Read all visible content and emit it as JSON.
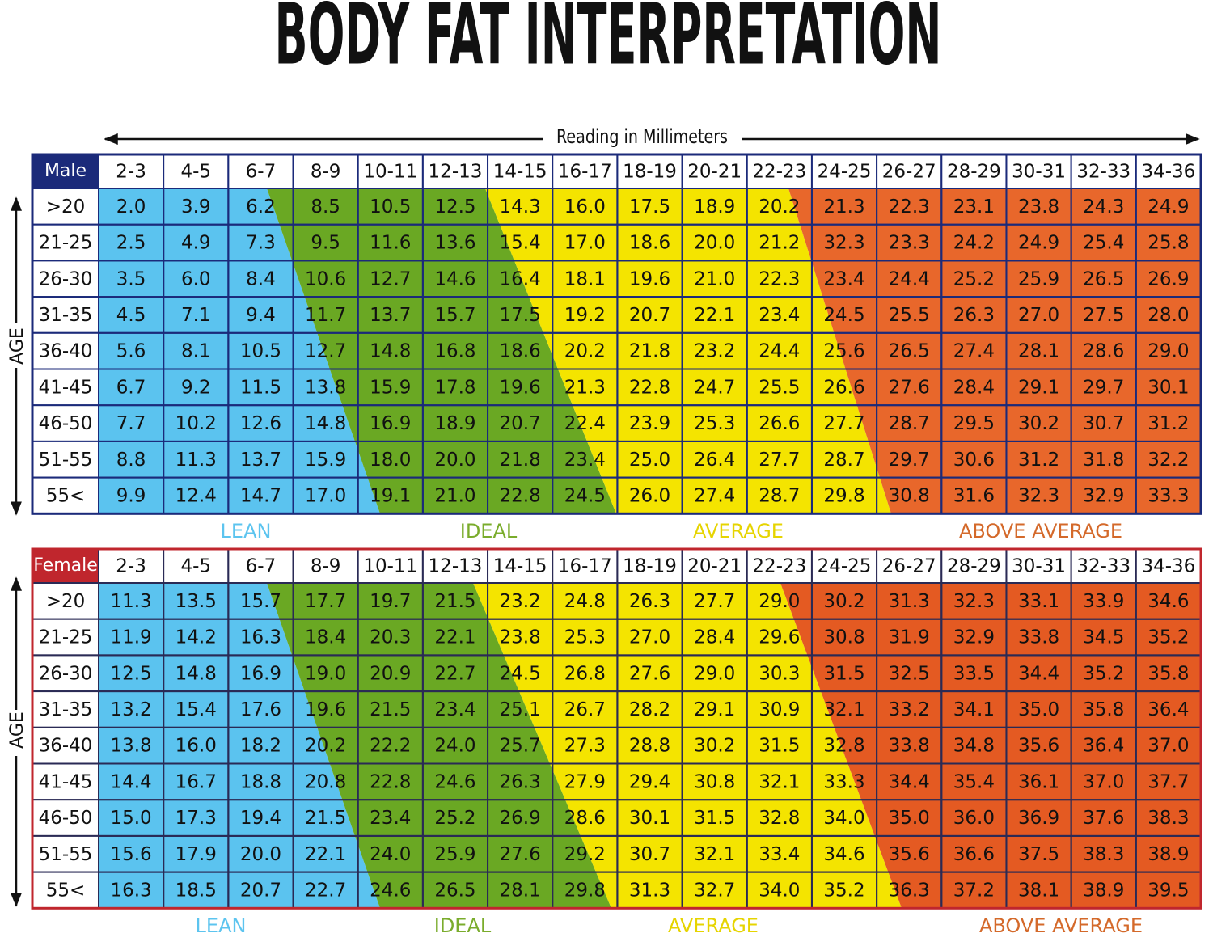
{
  "title": "BODY FAT INTERPRETATION",
  "reading_label": "Reading in Millimeters",
  "tables": [
    {
      "label": "Male",
      "age_label": "AGE",
      "columns": [
        "2-3",
        "4-5",
        "6-7",
        "8-9",
        "10-11",
        "12-13",
        "14-15",
        "16-17",
        "18-19",
        "20-21",
        "22-23",
        "24-25",
        "26-27",
        "28-29",
        "30-31",
        "32-33",
        "34-36"
      ],
      "rows": [
        {
          "age": ">20",
          "values": [
            "2.0",
            "3.9",
            "6.2",
            "8.5",
            "10.5",
            "12.5",
            "14.3",
            "16.0",
            "17.5",
            "18.9",
            "20.2",
            "21.3",
            "22.3",
            "23.1",
            "23.8",
            "24.3",
            "24.9"
          ]
        },
        {
          "age": "21-25",
          "values": [
            "2.5",
            "4.9",
            "7.3",
            "9.5",
            "11.6",
            "13.6",
            "15.4",
            "17.0",
            "18.6",
            "20.0",
            "21.2",
            "32.3",
            "23.3",
            "24.2",
            "24.9",
            "25.4",
            "25.8"
          ]
        },
        {
          "age": "26-30",
          "values": [
            "3.5",
            "6.0",
            "8.4",
            "10.6",
            "12.7",
            "14.6",
            "16.4",
            "18.1",
            "19.6",
            "21.0",
            "22.3",
            "23.4",
            "24.4",
            "25.2",
            "25.9",
            "26.5",
            "26.9"
          ]
        },
        {
          "age": "31-35",
          "values": [
            "4.5",
            "7.1",
            "9.4",
            "11.7",
            "13.7",
            "15.7",
            "17.5",
            "19.2",
            "20.7",
            "22.1",
            "23.4",
            "24.5",
            "25.5",
            "26.3",
            "27.0",
            "27.5",
            "28.0"
          ]
        },
        {
          "age": "36-40",
          "values": [
            "5.6",
            "8.1",
            "10.5",
            "12.7",
            "14.8",
            "16.8",
            "18.6",
            "20.2",
            "21.8",
            "23.2",
            "24.4",
            "25.6",
            "26.5",
            "27.4",
            "28.1",
            "28.6",
            "29.0"
          ]
        },
        {
          "age": "41-45",
          "values": [
            "6.7",
            "9.2",
            "11.5",
            "13.8",
            "15.9",
            "17.8",
            "19.6",
            "21.3",
            "22.8",
            "24.7",
            "25.5",
            "26.6",
            "27.6",
            "28.4",
            "29.1",
            "29.7",
            "30.1"
          ]
        },
        {
          "age": "46-50",
          "values": [
            "7.7",
            "10.2",
            "12.6",
            "14.8",
            "16.9",
            "18.9",
            "20.7",
            "22.4",
            "23.9",
            "25.3",
            "26.6",
            "27.7",
            "28.7",
            "29.5",
            "30.2",
            "30.7",
            "31.2"
          ]
        },
        {
          "age": "51-55",
          "values": [
            "8.8",
            "11.3",
            "13.7",
            "15.9",
            "18.0",
            "20.0",
            "21.8",
            "23.4",
            "25.0",
            "26.4",
            "27.7",
            "28.7",
            "29.7",
            "30.6",
            "31.2",
            "31.8",
            "32.2"
          ]
        },
        {
          "age": "55<",
          "values": [
            "9.9",
            "12.4",
            "14.7",
            "17.0",
            "19.1",
            "21.0",
            "22.8",
            "24.5",
            "26.0",
            "27.4",
            "28.7",
            "29.8",
            "30.8",
            "31.6",
            "32.3",
            "32.9",
            "33.3"
          ]
        }
      ],
      "zones": [
        "LEAN",
        "IDEAL",
        "AVERAGE",
        "ABOVE AVERAGE"
      ]
    },
    {
      "label": "Female",
      "age_label": "AGE",
      "columns": [
        "2-3",
        "4-5",
        "6-7",
        "8-9",
        "10-11",
        "12-13",
        "14-15",
        "16-17",
        "18-19",
        "20-21",
        "22-23",
        "24-25",
        "26-27",
        "28-29",
        "30-31",
        "32-33",
        "34-36"
      ],
      "rows": [
        {
          "age": ">20",
          "values": [
            "11.3",
            "13.5",
            "15.7",
            "17.7",
            "19.7",
            "21.5",
            "23.2",
            "24.8",
            "26.3",
            "27.7",
            "29.0",
            "30.2",
            "31.3",
            "32.3",
            "33.1",
            "33.9",
            "34.6"
          ]
        },
        {
          "age": "21-25",
          "values": [
            "11.9",
            "14.2",
            "16.3",
            "18.4",
            "20.3",
            "22.1",
            "23.8",
            "25.3",
            "27.0",
            "28.4",
            "29.6",
            "30.8",
            "31.9",
            "32.9",
            "33.8",
            "34.5",
            "35.2"
          ]
        },
        {
          "age": "26-30",
          "values": [
            "12.5",
            "14.8",
            "16.9",
            "19.0",
            "20.9",
            "22.7",
            "24.5",
            "26.8",
            "27.6",
            "29.0",
            "30.3",
            "31.5",
            "32.5",
            "33.5",
            "34.4",
            "35.2",
            "35.8"
          ]
        },
        {
          "age": "31-35",
          "values": [
            "13.2",
            "15.4",
            "17.6",
            "19.6",
            "21.5",
            "23.4",
            "25.1",
            "26.7",
            "28.2",
            "29.1",
            "30.9",
            "32.1",
            "33.2",
            "34.1",
            "35.0",
            "35.8",
            "36.4"
          ]
        },
        {
          "age": "36-40",
          "values": [
            "13.8",
            "16.0",
            "18.2",
            "20.2",
            "22.2",
            "24.0",
            "25.7",
            "27.3",
            "28.8",
            "30.2",
            "31.5",
            "32.8",
            "33.8",
            "34.8",
            "35.6",
            "36.4",
            "37.0"
          ]
        },
        {
          "age": "41-45",
          "values": [
            "14.4",
            "16.7",
            "18.8",
            "20.8",
            "22.8",
            "24.6",
            "26.3",
            "27.9",
            "29.4",
            "30.8",
            "32.1",
            "33.3",
            "34.4",
            "35.4",
            "36.1",
            "37.0",
            "37.7"
          ]
        },
        {
          "age": "46-50",
          "values": [
            "15.0",
            "17.3",
            "19.4",
            "21.5",
            "23.4",
            "25.2",
            "26.9",
            "28.6",
            "30.1",
            "31.5",
            "32.8",
            "34.0",
            "35.0",
            "36.0",
            "36.9",
            "37.6",
            "38.3"
          ]
        },
        {
          "age": "51-55",
          "values": [
            "15.6",
            "17.9",
            "20.0",
            "22.1",
            "24.0",
            "25.9",
            "27.6",
            "29.2",
            "30.7",
            "32.1",
            "33.4",
            "34.6",
            "35.6",
            "36.6",
            "37.5",
            "38.3",
            "38.9"
          ]
        },
        {
          "age": "55<",
          "values": [
            "16.3",
            "18.5",
            "20.7",
            "22.7",
            "24.6",
            "26.5",
            "28.1",
            "29.8",
            "31.3",
            "32.7",
            "34.0",
            "35.2",
            "36.3",
            "37.2",
            "38.1",
            "38.9",
            "39.5"
          ]
        }
      ],
      "zones": [
        "LEAN",
        "IDEAL",
        "AVERAGE",
        "ABOVE AVERAGE"
      ]
    }
  ]
}
